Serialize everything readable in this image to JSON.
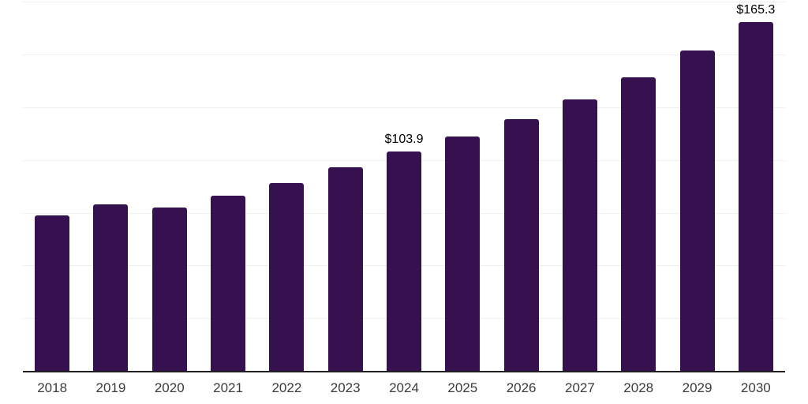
{
  "chart_data": {
    "type": "bar",
    "title": "",
    "xlabel": "",
    "ylabel": "",
    "categories": [
      "2018",
      "2019",
      "2020",
      "2021",
      "2022",
      "2023",
      "2024",
      "2025",
      "2026",
      "2027",
      "2028",
      "2029",
      "2030"
    ],
    "values": [
      73.7,
      78.8,
      77.6,
      83.0,
      89.0,
      96.5,
      103.9,
      111.1,
      119.2,
      128.6,
      139.2,
      151.8,
      165.3
    ],
    "data_labels": {
      "2024": "$103.9",
      "2030": "$165.3"
    },
    "ylim": [
      0,
      175.8
    ],
    "gridlines": {
      "visible": true,
      "interval": 25,
      "max": 175
    },
    "legend_position": "none",
    "colors": {
      "bar": "#35124F",
      "axis_line": "#1f1f1f",
      "gridline": "#efefef",
      "data_label": "#000000",
      "tick_label": "#3b3b3b",
      "background": "#ffffff"
    }
  }
}
